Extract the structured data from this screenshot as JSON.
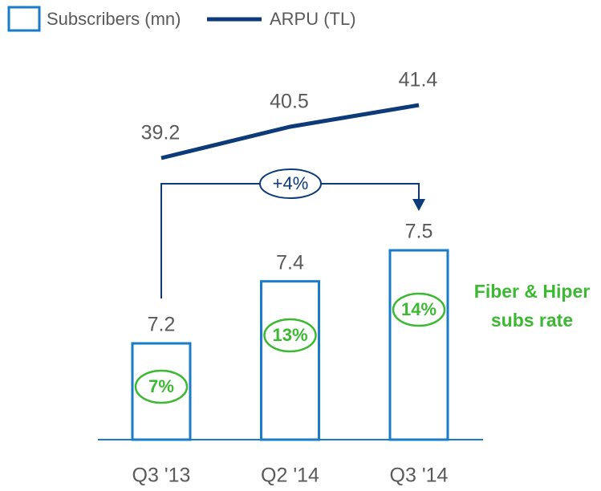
{
  "chart_data": {
    "type": "bar",
    "categories": [
      "Q3 '13",
      "Q2 '14",
      "Q3 '14"
    ],
    "series": [
      {
        "name": "Subscribers (mn)",
        "type": "bar",
        "color": "#1a7cc9",
        "values": [
          7.2,
          7.4,
          7.5
        ]
      },
      {
        "name": "ARPU (TL)",
        "type": "line",
        "color": "#0d3a78",
        "values": [
          39.2,
          40.5,
          41.4
        ]
      }
    ],
    "subs_rate": {
      "label": "Fiber & Hiper subs rate",
      "color": "#3cb832",
      "values": [
        7,
        13,
        14
      ],
      "value_labels": [
        "7%",
        "13%",
        "14%"
      ]
    },
    "growth_label": "+4%"
  }
}
